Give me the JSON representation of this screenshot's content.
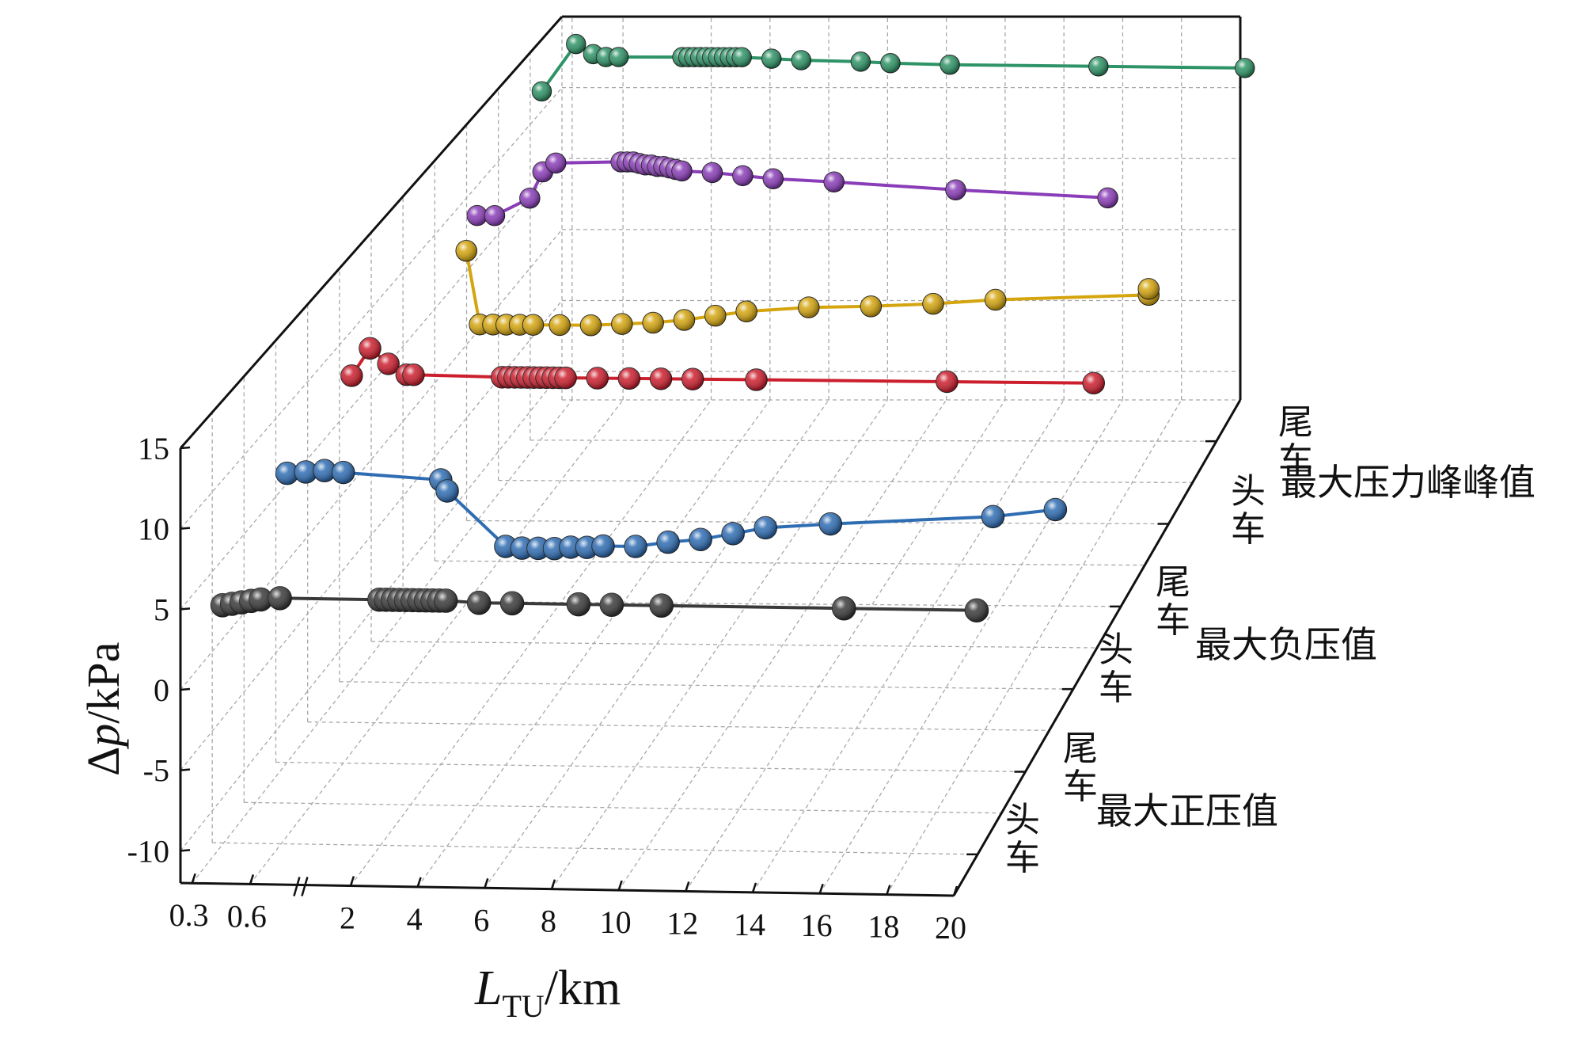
{
  "chart_data": {
    "type": "scatter",
    "projection": "3d",
    "title": "",
    "xlabel": {
      "main": "L",
      "sub": "TU",
      "unit": "/km"
    },
    "ylabel": {
      "pre": "Δ",
      "var": "p",
      "unit": "/kPa"
    },
    "x_ticks": [
      "0.3",
      "0.6",
      "2",
      "4",
      "6",
      "8",
      "10",
      "12",
      "14",
      "16",
      "18",
      "20"
    ],
    "y_ticks": [
      "15",
      "10",
      "5",
      "0",
      "-5",
      "-10"
    ],
    "xlim": [
      0,
      20
    ],
    "ylim": [
      -12,
      15
    ],
    "x_axis_break": "between 0.6 and 2",
    "grid": true,
    "depth_groups": [
      {
        "name": "最大正压值",
        "head_label": "头车",
        "tail_label": "尾车"
      },
      {
        "name": "最大负压值",
        "head_label": "头车",
        "tail_label": "尾车"
      },
      {
        "name": "最大压力峰峰值",
        "head_label": "头车",
        "tail_label": "尾车"
      }
    ],
    "series": [
      {
        "color": "#3a3a3a",
        "group": "最大正压值 头车",
        "x": [
          0.3,
          0.35,
          0.4,
          0.45,
          0.5,
          0.6,
          2.0,
          2.2,
          2.4,
          2.6,
          2.8,
          3.0,
          3.2,
          3.4,
          3.6,
          3.8,
          4.0,
          5.0,
          6.0,
          8.0,
          9.0,
          10.5,
          16.0,
          20.0
        ],
        "values": [
          3.0,
          3.1,
          3.2,
          3.3,
          3.4,
          3.5,
          3.5,
          3.5,
          3.5,
          3.5,
          3.5,
          3.5,
          3.5,
          3.5,
          3.5,
          3.5,
          3.5,
          3.4,
          3.4,
          3.4,
          3.4,
          3.4,
          3.4,
          3.4
        ]
      },
      {
        "color": "#2f6db3",
        "group": "最大正压值 尾车",
        "x": [
          0.3,
          0.4,
          0.5,
          0.6,
          2.0,
          2.2,
          4.0,
          4.5,
          5.0,
          5.5,
          6.0,
          6.5,
          7.0,
          8.0,
          9.0,
          10.0,
          11.0,
          12.0,
          14.0,
          19.0,
          22.0
        ],
        "values": [
          6.5,
          6.6,
          6.7,
          6.6,
          6.2,
          5.5,
          2.0,
          1.9,
          1.9,
          1.9,
          2.0,
          2.0,
          2.1,
          2.1,
          2.4,
          2.6,
          3.0,
          3.4,
          3.7,
          4.3,
          4.8
        ]
      },
      {
        "color": "#cc1f2e",
        "group": "最大负压值 头车",
        "x": [
          0.3,
          0.4,
          0.5,
          0.6,
          0.7,
          2.0,
          2.2,
          2.4,
          2.6,
          2.8,
          3.0,
          3.2,
          3.4,
          3.6,
          3.8,
          4.0,
          5.0,
          6.0,
          7.0,
          8.0,
          10.0,
          16.0,
          20.5
        ],
        "values": [
          7.9,
          9.7,
          8.7,
          8.0,
          8.0,
          7.9,
          7.9,
          7.9,
          7.9,
          7.9,
          7.9,
          7.9,
          7.9,
          7.9,
          7.9,
          7.9,
          7.9,
          7.9,
          7.9,
          7.9,
          7.9,
          7.9,
          7.9
        ]
      },
      {
        "color": "#d4a50f",
        "group": "最大负压值 尾车",
        "x": [
          0.6,
          0.8,
          1.0,
          1.2,
          1.4,
          1.6,
          2.0,
          3.0,
          4.0,
          5.0,
          6.0,
          7.0,
          8.0,
          10.0,
          12.0,
          14.0,
          16.0,
          21.0,
          25.0
        ],
        "values": [
          11.5,
          6.6,
          6.6,
          6.6,
          6.6,
          6.6,
          6.6,
          6.6,
          6.7,
          6.8,
          7.0,
          7.3,
          7.6,
          7.9,
          8.0,
          8.2,
          8.5,
          8.9,
          9.3
        ]
      },
      {
        "color": "#8a3db8",
        "group": "最大压力峰峰值 头车",
        "x": [
          0.3,
          0.4,
          0.6,
          0.8,
          1.0,
          2.0,
          2.2,
          2.4,
          2.6,
          2.8,
          3.0,
          3.2,
          3.4,
          3.6,
          3.8,
          4.0,
          5.0,
          6.0,
          7.0,
          9.0,
          13.0,
          18.0
        ],
        "values": [
          8.8,
          8.8,
          10.0,
          11.8,
          12.4,
          12.5,
          12.5,
          12.5,
          12.4,
          12.3,
          12.3,
          12.2,
          12.2,
          12.1,
          12.0,
          11.9,
          11.8,
          11.6,
          11.4,
          11.2,
          10.7,
          10.2
        ]
      },
      {
        "color": "#2e9366",
        "group": "最大压力峰峰值 尾车",
        "x": [
          0.3,
          0.5,
          0.6,
          0.8,
          1.0,
          2.0,
          2.2,
          2.4,
          2.6,
          2.8,
          3.0,
          3.2,
          3.4,
          3.6,
          3.8,
          4.0,
          5.0,
          6.0,
          8.0,
          9.0,
          11.0,
          16.0,
          21.0
        ],
        "values": [
          12.2,
          15.5,
          14.8,
          14.6,
          14.6,
          14.6,
          14.6,
          14.6,
          14.6,
          14.6,
          14.6,
          14.6,
          14.6,
          14.6,
          14.6,
          14.6,
          14.5,
          14.4,
          14.3,
          14.2,
          14.1,
          14.0,
          13.9
        ]
      }
    ]
  }
}
